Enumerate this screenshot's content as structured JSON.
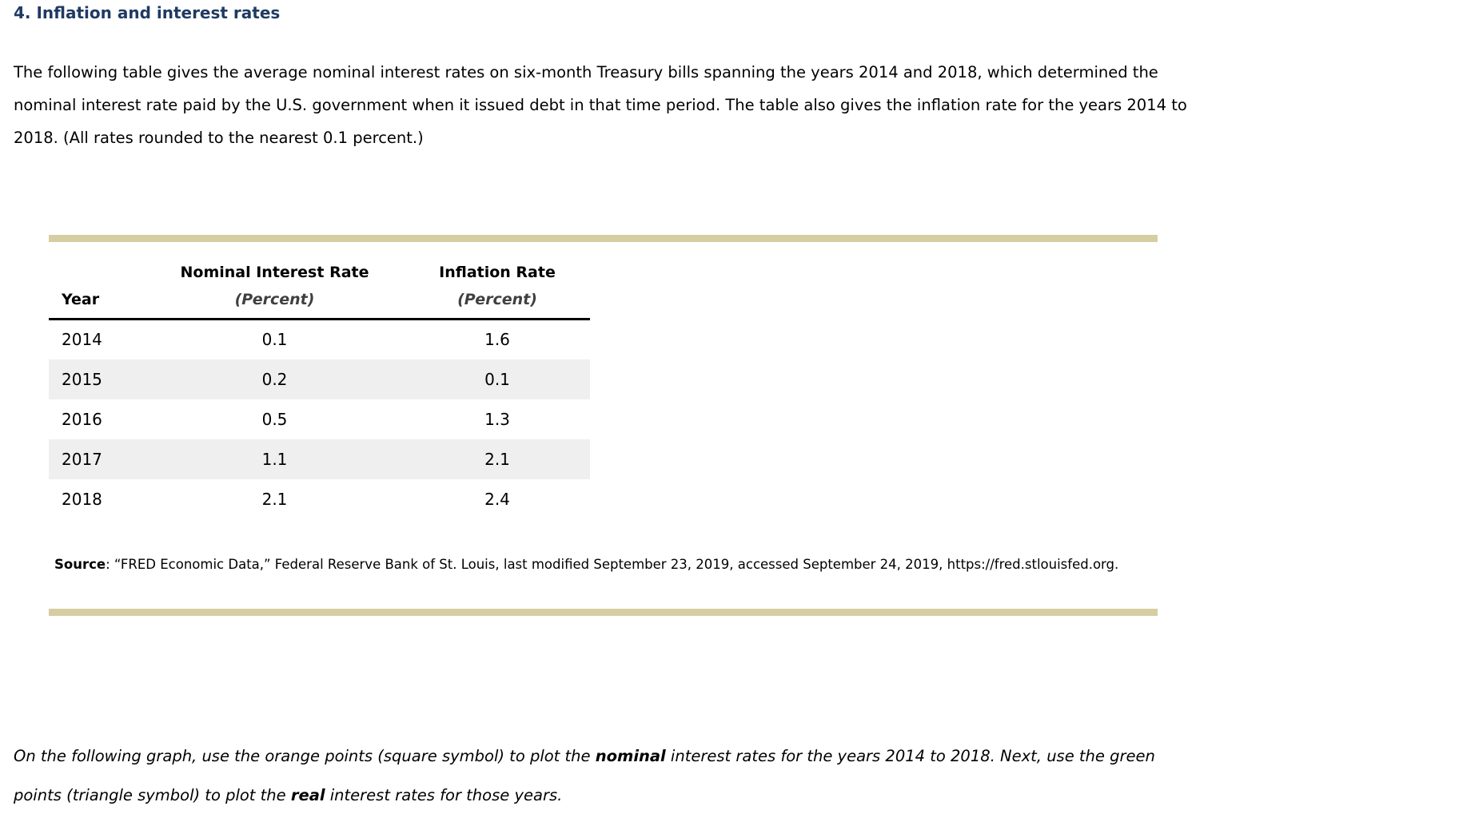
{
  "page": {
    "heading": "4. Inflation and interest rates",
    "intro_lines": [
      "The following table gives the average nominal interest rates on six-month Treasury bills spanning the years 2014 and 2018, which determined the",
      "nominal interest rate paid by the U.S. government when it issued debt in that time period. The table also gives the inflation rate for the years 2014 to",
      "2018. (All rates rounded to the nearest 0.1 percent.)"
    ],
    "table": {
      "columns": {
        "year_label": "Year",
        "nominal_label": "Nominal Interest Rate",
        "inflation_label": "Inflation Rate",
        "unit_label": "(Percent)"
      },
      "rows": [
        {
          "year": "2014",
          "nominal": "0.1",
          "inflation": "1.6"
        },
        {
          "year": "2015",
          "nominal": "0.2",
          "inflation": "0.1"
        },
        {
          "year": "2016",
          "nominal": "0.5",
          "inflation": "1.3"
        },
        {
          "year": "2017",
          "nominal": "1.1",
          "inflation": "2.1"
        },
        {
          "year": "2018",
          "nominal": "2.1",
          "inflation": "2.4"
        }
      ]
    },
    "source": {
      "label": "Source",
      "text": ": “FRED Economic Data,” Federal Reserve Bank of St. Louis, last modified September 23, 2019, accessed September 24, 2019, https://fred.stlouisfed.org."
    },
    "instruction": {
      "p0": "On the following graph, use the orange points (square symbol) to plot the ",
      "p1": "nominal",
      "p2": " interest rates for the years 2014 to 2018. Next, use the green",
      "p3": "points (triangle symbol) to plot the ",
      "p4": "real",
      "p5": " interest rates for those years."
    },
    "colors": {
      "heading": "#1f3a63",
      "rule": "#d6cda2",
      "row_alt": "#efefef"
    }
  }
}
